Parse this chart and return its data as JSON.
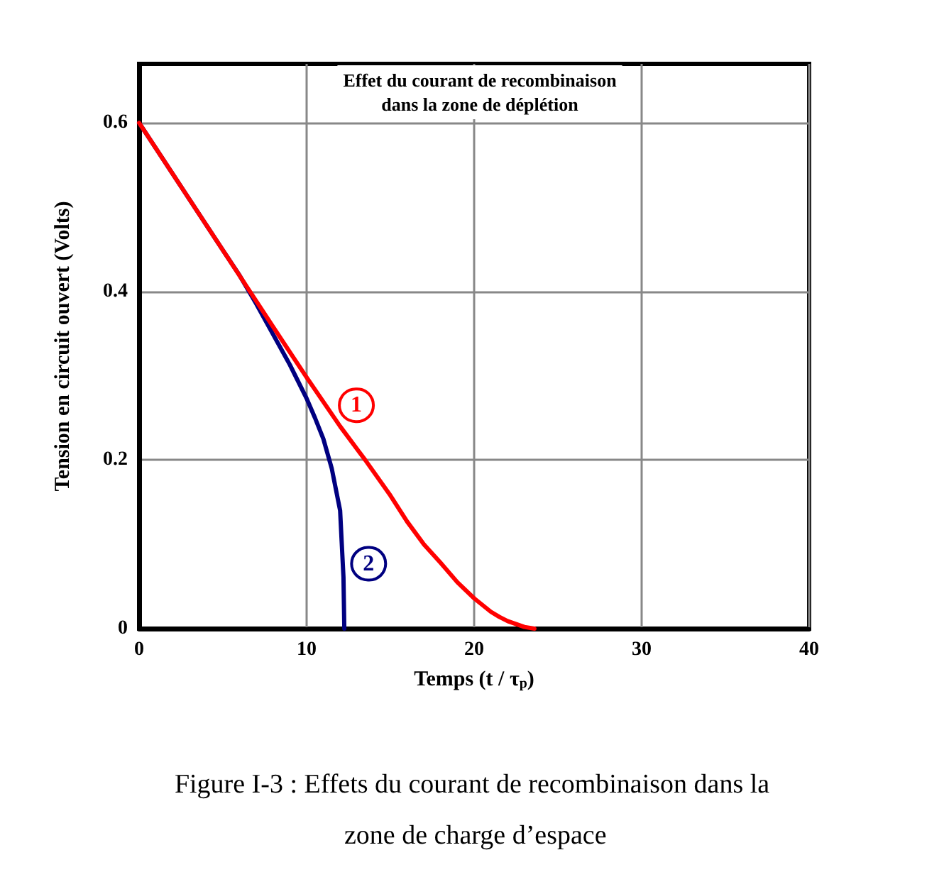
{
  "chart_data": {
    "type": "line",
    "title": "Effet du courant de recombinaison\ndans la zone de déplétion",
    "xlabel": "Temps (t / τ$_{p}$)",
    "ylabel": "Tension en circuit ouvert (Volts)",
    "series": [
      {
        "color": "#ff0000",
        "x": [
          0,
          5,
          8,
          10,
          12,
          13.5,
          15,
          16,
          17,
          18,
          19,
          20,
          21,
          21.5,
          22,
          23,
          23.6
        ],
        "values": [
          0.6,
          0.449,
          0.358,
          0.298,
          0.24,
          0.2,
          0.158,
          0.127,
          0.1,
          0.078,
          0.055,
          0.036,
          0.02,
          0.014,
          0.009,
          0.002,
          0
        ]
      },
      {
        "color": "#000080",
        "x": [
          0,
          5,
          6,
          7,
          8,
          9,
          10,
          10.5,
          11,
          11.5,
          12,
          12.1,
          12.2,
          12.25
        ],
        "values": [
          0.6,
          0.449,
          0.419,
          0.385,
          0.349,
          0.313,
          0.273,
          0.25,
          0.225,
          0.19,
          0.14,
          0.1,
          0.061,
          0
        ]
      }
    ],
    "annotations": [
      {
        "text": "1",
        "x": 12.97,
        "y": 0.265
      },
      {
        "text": "2",
        "x": 13.7,
        "y": 0.077
      },
      "Figure I-3 : Effets du courant de recombinaison dans la zone de charge d’espace"
    ],
    "xlim": [
      0,
      40
    ],
    "xticks": [
      0,
      10,
      20,
      30,
      40
    ],
    "ylim": [
      0,
      0.67
    ],
    "yticks": [
      {
        "value": 0,
        "label": "0"
      },
      0.2,
      0.4,
      0.6
    ],
    "grid": true,
    "marker": "none",
    "line_style": "solid"
  }
}
